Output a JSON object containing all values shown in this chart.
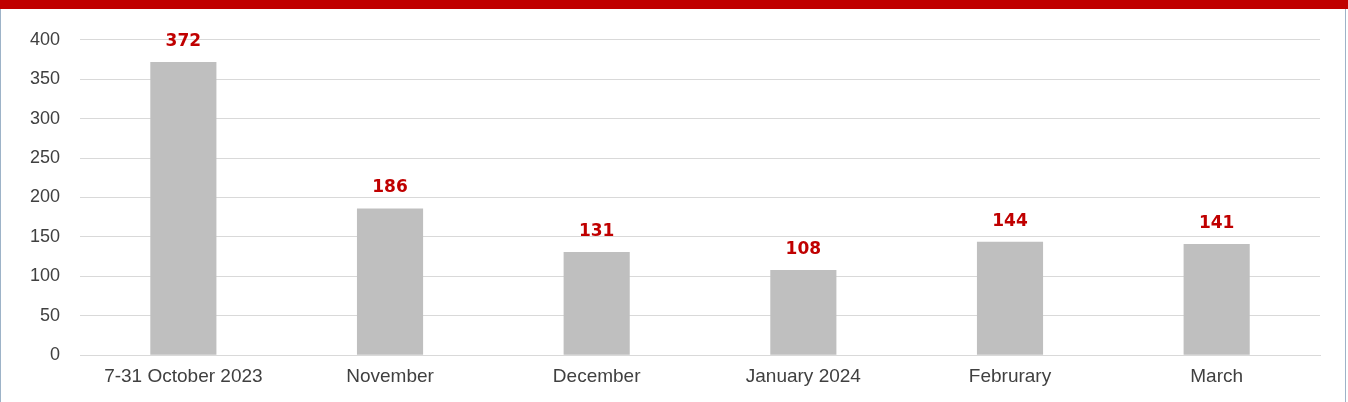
{
  "chart_data": {
    "type": "bar",
    "categories": [
      "7-31 October 2023",
      "November",
      "December",
      "January 2024",
      "Februrary",
      "March"
    ],
    "values": [
      372,
      186,
      131,
      108,
      144,
      141
    ],
    "color": "#bfbfbf",
    "ylim": [
      0,
      400
    ],
    "yticks": [
      0,
      50,
      100,
      150,
      200,
      250,
      300,
      350,
      400
    ],
    "grid": "y",
    "legend": false,
    "data_labels": true
  }
}
